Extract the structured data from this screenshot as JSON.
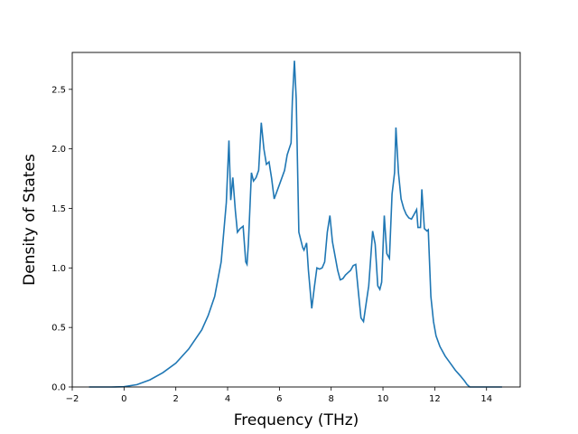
{
  "chart_data": {
    "type": "line",
    "title": "",
    "xlabel": "Frequency (THz)",
    "ylabel": "Density of States",
    "xlim": [
      -2.0,
      15.3
    ],
    "ylim": [
      0.0,
      2.81
    ],
    "grid": false,
    "legend": "none",
    "x_ticks": [
      -2,
      0,
      2,
      4,
      6,
      8,
      10,
      12,
      14
    ],
    "x_tick_labels": [
      "−2",
      "0",
      "2",
      "4",
      "6",
      "8",
      "10",
      "12",
      "14"
    ],
    "y_ticks": [
      0.0,
      0.5,
      1.0,
      1.5,
      2.0,
      2.5
    ],
    "y_tick_labels": [
      "0.0",
      "0.5",
      "1.0",
      "1.5",
      "2.0",
      "2.5"
    ],
    "colors": {
      "line": "#1f77b4",
      "axes": "#000000",
      "background": "#ffffff"
    },
    "series": [
      {
        "x": [
          -1.35,
          -0.5,
          0.0,
          0.5,
          1.0,
          1.5,
          2.0,
          2.5,
          3.0,
          3.25,
          3.5,
          3.75,
          3.95,
          4.05,
          4.12,
          4.2,
          4.3,
          4.38,
          4.48,
          4.6,
          4.7,
          4.75,
          4.8,
          4.92,
          5.0,
          5.1,
          5.2,
          5.3,
          5.4,
          5.5,
          5.6,
          5.7,
          5.8,
          6.0,
          6.2,
          6.3,
          6.45,
          6.5,
          6.58,
          6.65,
          6.75,
          6.9,
          6.95,
          7.05,
          7.12,
          7.25,
          7.35,
          7.45,
          7.55,
          7.65,
          7.75,
          7.85,
          7.95,
          8.05,
          8.15,
          8.25,
          8.35,
          8.45,
          8.55,
          8.65,
          8.75,
          8.85,
          8.95,
          9.05,
          9.15,
          9.25,
          9.35,
          9.45,
          9.6,
          9.7,
          9.8,
          9.88,
          9.95,
          10.05,
          10.15,
          10.25,
          10.35,
          10.45,
          10.5,
          10.6,
          10.7,
          10.8,
          10.9,
          11.0,
          11.1,
          11.2,
          11.3,
          11.35,
          11.45,
          11.5,
          11.6,
          11.7,
          11.75,
          11.85,
          11.95,
          12.05,
          12.2,
          12.4,
          12.6,
          12.8,
          13.0,
          13.15,
          13.25,
          13.35,
          13.5,
          14.0,
          14.6
        ],
        "y": [
          0.0,
          0.0,
          0.002,
          0.02,
          0.06,
          0.12,
          0.2,
          0.32,
          0.48,
          0.6,
          0.76,
          1.05,
          1.55,
          2.07,
          1.57,
          1.76,
          1.48,
          1.3,
          1.33,
          1.35,
          1.05,
          1.03,
          1.2,
          1.8,
          1.73,
          1.76,
          1.82,
          2.22,
          2.0,
          1.87,
          1.89,
          1.75,
          1.58,
          1.7,
          1.82,
          1.95,
          2.05,
          2.4,
          2.74,
          2.42,
          1.3,
          1.17,
          1.15,
          1.21,
          0.98,
          0.66,
          0.84,
          1.0,
          0.99,
          1.0,
          1.05,
          1.3,
          1.44,
          1.22,
          1.1,
          0.98,
          0.9,
          0.91,
          0.94,
          0.96,
          0.98,
          1.02,
          1.03,
          0.8,
          0.58,
          0.55,
          0.7,
          0.85,
          1.31,
          1.2,
          0.85,
          0.82,
          0.88,
          1.44,
          1.12,
          1.08,
          1.62,
          1.8,
          2.18,
          1.8,
          1.58,
          1.5,
          1.45,
          1.42,
          1.41,
          1.45,
          1.49,
          1.34,
          1.34,
          1.66,
          1.33,
          1.31,
          1.32,
          0.76,
          0.55,
          0.43,
          0.34,
          0.26,
          0.2,
          0.14,
          0.09,
          0.05,
          0.02,
          0.0,
          0.0,
          0.0,
          0.0
        ]
      }
    ]
  }
}
